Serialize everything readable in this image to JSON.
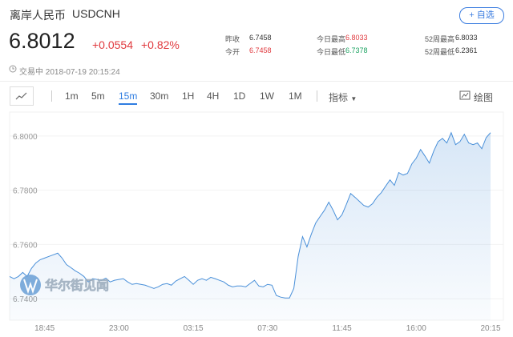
{
  "header": {
    "name": "离岸人民币",
    "symbol": "USDCNH",
    "add_button": "+ 自选",
    "price": "6.8012",
    "change": "+0.0554",
    "change_pct": "+0.82%",
    "status": "交易中 2018-07-19 20:15:24"
  },
  "stats": [
    {
      "label": "昨收",
      "value": "6.7458",
      "color": "#333333"
    },
    {
      "label": "今开",
      "value": "6.7458",
      "color": "#e0393e"
    },
    {
      "label": "今日最高",
      "value": "6.8033",
      "color": "#e0393e"
    },
    {
      "label": "今日最低",
      "value": "6.7378",
      "color": "#1aa260"
    },
    {
      "label": "52周最高",
      "value": "6.8033",
      "color": "#333333"
    },
    {
      "label": "52周最低",
      "value": "6.2361",
      "color": "#333333"
    }
  ],
  "toolbar": {
    "intervals": [
      "1m",
      "5m",
      "15m",
      "30m",
      "1H",
      "4H",
      "1D",
      "1W",
      "1M"
    ],
    "indicators": "指标",
    "draw": "绘图"
  },
  "watermark": "华尔街见闻",
  "chart_data": {
    "type": "area",
    "color": "#4a90d9",
    "categories": [
      null,
      null,
      null,
      null,
      null,
      null,
      null,
      null,
      "18:45",
      null,
      null,
      null,
      null,
      null,
      null,
      null,
      null,
      null,
      null,
      null,
      null,
      null,
      null,
      null,
      null,
      "23:00",
      null,
      null,
      null,
      null,
      null,
      null,
      null,
      null,
      null,
      null,
      null,
      null,
      null,
      null,
      null,
      null,
      "03:15",
      null,
      null,
      null,
      null,
      null,
      null,
      null,
      null,
      null,
      null,
      null,
      null,
      null,
      null,
      null,
      null,
      "07:30",
      null,
      null,
      null,
      null,
      null,
      null,
      null,
      null,
      null,
      null,
      null,
      null,
      null,
      null,
      null,
      null,
      "11:45",
      null,
      null,
      null,
      null,
      null,
      null,
      null,
      null,
      null,
      null,
      null,
      null,
      null,
      null,
      null,
      null,
      "16:00",
      null,
      null,
      null,
      null,
      null,
      null,
      null,
      null,
      null,
      null,
      null,
      null,
      null,
      null,
      null,
      null,
      "20:15"
    ],
    "values": [
      6.7482,
      6.7474,
      6.7482,
      6.7497,
      6.7482,
      6.7512,
      6.7532,
      6.7544,
      6.755,
      6.7556,
      6.7562,
      6.7568,
      6.755,
      6.7526,
      6.7515,
      6.7503,
      6.7494,
      6.7482,
      6.7462,
      6.7474,
      6.7471,
      6.7468,
      6.7476,
      6.7462,
      6.7468,
      6.7471,
      6.7474,
      6.7462,
      6.7453,
      6.7456,
      6.7453,
      6.745,
      6.7444,
      6.7438,
      6.7444,
      6.7453,
      6.7456,
      6.745,
      6.7465,
      6.7474,
      6.7482,
      6.7468,
      6.7453,
      6.7468,
      6.7474,
      6.7468,
      6.7479,
      6.7474,
      6.7468,
      6.7462,
      6.745,
      6.7444,
      6.7447,
      6.7447,
      6.7444,
      6.7456,
      6.7468,
      6.7447,
      6.7444,
      6.7453,
      6.745,
      6.7412,
      6.7406,
      6.7403,
      6.7403,
      6.7438,
      6.7556,
      6.7629,
      6.7591,
      6.7638,
      6.7679,
      6.7703,
      6.7726,
      6.7756,
      6.7726,
      6.7691,
      6.7709,
      6.7747,
      6.7788,
      6.7774,
      6.7759,
      6.7744,
      6.7738,
      6.775,
      6.7774,
      6.7791,
      6.7815,
      6.7838,
      6.7818,
      6.7865,
      6.7856,
      6.7862,
      6.7897,
      6.7918,
      6.795,
      6.7926,
      6.79,
      6.7944,
      6.7979,
      6.7991,
      6.7974,
      6.8012,
      6.7968,
      6.7979,
      6.8006,
      6.7974,
      6.7968,
      6.7974,
      6.7953,
      6.7994,
      6.8012
    ],
    "ylim": [
      6.7321,
      6.8088
    ],
    "yticks": [
      {
        "value": 6.74,
        "label": "6.7400"
      },
      {
        "value": 6.76,
        "label": "6.7600"
      },
      {
        "value": 6.78,
        "label": "6.7800"
      },
      {
        "value": 6.8,
        "label": "6.8000"
      }
    ],
    "grid": true
  }
}
